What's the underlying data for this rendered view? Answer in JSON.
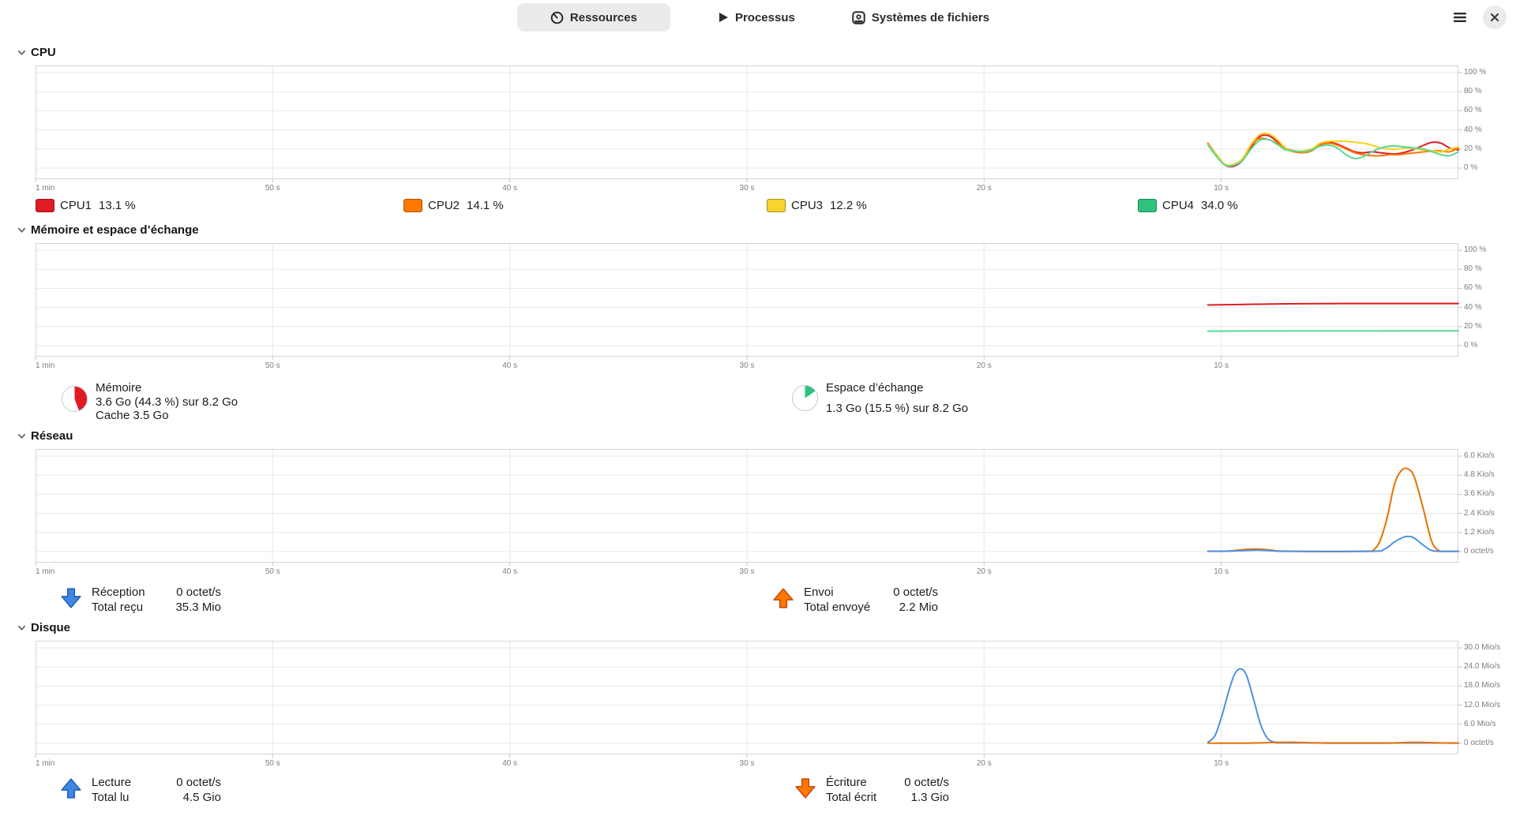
{
  "header": {
    "tabs": [
      {
        "label": "Ressources",
        "icon": "gauge-icon",
        "active": true
      },
      {
        "label": "Processus",
        "icon": "play-icon",
        "active": false
      },
      {
        "label": "Systèmes de fichiers",
        "icon": "disk-icon",
        "active": false
      }
    ]
  },
  "sections": {
    "cpu": {
      "title": "CPU",
      "legend": [
        {
          "name": "CPU1",
          "value": "13.1 %",
          "color": "#e01b24"
        },
        {
          "name": "CPU2",
          "value": "14.1 %",
          "color": "#ff7800"
        },
        {
          "name": "CPU3",
          "value": "12.2 %",
          "color": "#f6d32d"
        },
        {
          "name": "CPU4",
          "value": "34.0 %",
          "color": "#2ec27e"
        }
      ]
    },
    "memory": {
      "title": "Mémoire et espace d’échange",
      "memory": {
        "label": "Mémoire",
        "usage": "3.6 Go (44.3 %) sur 8.2 Go",
        "cache": "Cache 3.5 Go",
        "percent": 44.3,
        "color": "#e01b24"
      },
      "swap": {
        "label": "Espace d’échange",
        "usage": "1.3 Go (15.5 %) sur 8.2 Go",
        "percent": 15.5,
        "color": "#2ec27e"
      }
    },
    "network": {
      "title": "Réseau",
      "receive": {
        "label": "Réception",
        "rate": "0 octet/s",
        "total_label": "Total reçu",
        "total": "35.3 Mio"
      },
      "send": {
        "label": "Envoi",
        "rate": "0 octet/s",
        "total_label": "Total envoyé",
        "total": "2.2 Mio"
      }
    },
    "disk": {
      "title": "Disque",
      "read": {
        "label": "Lecture",
        "rate": "0 octet/s",
        "total_label": "Total lu",
        "total": "4.5 Gio"
      },
      "write": {
        "label": "Écriture",
        "rate": "0 octet/s",
        "total_label": "Total écrit",
        "total": "1.3 Gio"
      }
    }
  },
  "chart_data": [
    {
      "type": "line",
      "title": "CPU history (%)",
      "ylim": [
        0,
        100
      ],
      "yticks": [
        "100 %",
        "80 %",
        "60 %",
        "40 %",
        "20 %",
        "0 %"
      ],
      "xticks": [
        "1 min",
        "50 s",
        "40 s",
        "30 s",
        "20 s",
        "10 s"
      ],
      "grid": true,
      "series": [
        {
          "name": "CPU1",
          "color": "#e01b24",
          "x_start": 0.824,
          "values": [
            26,
            14,
            3,
            2,
            8,
            22,
            33,
            34,
            28,
            21,
            18,
            17,
            19,
            25,
            27,
            25,
            21,
            17,
            16,
            17,
            16,
            15,
            15,
            17,
            20,
            24,
            27,
            26,
            21,
            19
          ]
        },
        {
          "name": "CPU2",
          "color": "#ff7800",
          "x_start": 0.824,
          "values": [
            26,
            13,
            3,
            3,
            9,
            24,
            31,
            30,
            26,
            20,
            17,
            16,
            18,
            24,
            26,
            24,
            20,
            16,
            14,
            13,
            13,
            14,
            14,
            15,
            16,
            17,
            18,
            18,
            17,
            21
          ]
        },
        {
          "name": "CPU3",
          "color": "#f5d01f",
          "x_start": 0.824,
          "values": [
            25,
            14,
            4,
            4,
            10,
            25,
            35,
            36,
            30,
            21,
            18,
            18,
            20,
            26,
            28,
            28,
            28,
            27,
            26,
            24,
            21,
            20,
            20,
            21,
            20,
            19,
            18,
            17,
            20,
            22
          ]
        },
        {
          "name": "CPU4",
          "color": "#57d992",
          "x_start": 0.824,
          "values": [
            24,
            12,
            3,
            3,
            8,
            20,
            29,
            30,
            25,
            19,
            18,
            17,
            19,
            23,
            24,
            21,
            14,
            10,
            12,
            17,
            21,
            23,
            23,
            22,
            21,
            20,
            17,
            14,
            13,
            17
          ]
        }
      ]
    },
    {
      "type": "line",
      "title": "Memory and swap history (%)",
      "ylim": [
        0,
        100
      ],
      "yticks": [
        "100 %",
        "80 %",
        "60 %",
        "40 %",
        "20 %",
        "0 %"
      ],
      "xticks": [
        "1 min",
        "50 s",
        "40 s",
        "30 s",
        "20 s",
        "10 s"
      ],
      "grid": true,
      "series": [
        {
          "name": "Mémoire",
          "color": "#e01b24",
          "points": [
            [
              0.824,
              42.6
            ],
            [
              0.85,
              43.2
            ],
            [
              0.88,
              43.8
            ],
            [
              0.92,
              44.1
            ],
            [
              1,
              44.1
            ]
          ]
        },
        {
          "name": "Espace d’échange",
          "color": "#57d992",
          "points": [
            [
              0.824,
              15.2
            ],
            [
              0.9,
              15.4
            ],
            [
              1,
              15.5
            ]
          ]
        }
      ]
    },
    {
      "type": "line",
      "title": "Network history (Kio/s)",
      "ylim": [
        0,
        6
      ],
      "yticks": [
        "6.0 Kio/s",
        "4.8 Kio/s",
        "3.6 Kio/s",
        "2.4 Kio/s",
        "1.2 Kio/s",
        "0 octet/s"
      ],
      "xticks": [
        "1 min",
        "50 s",
        "40 s",
        "30 s",
        "20 s",
        "10 s"
      ],
      "grid": true,
      "series": [
        {
          "name": "Envoi",
          "color": "#e87000",
          "points": [
            [
              0.824,
              0.03
            ],
            [
              0.838,
              0.03
            ],
            [
              0.848,
              0.12
            ],
            [
              0.858,
              0.16
            ],
            [
              0.868,
              0.1
            ],
            [
              0.878,
              0.03
            ],
            [
              0.93,
              0.02
            ],
            [
              0.942,
              0.25
            ],
            [
              0.949,
              1.8
            ],
            [
              0.955,
              4.2
            ],
            [
              0.96,
              5.1
            ],
            [
              0.9645,
              5.2
            ],
            [
              0.969,
              4.7
            ],
            [
              0.975,
              2.8
            ],
            [
              0.981,
              0.7
            ],
            [
              0.986,
              0.08
            ],
            [
              0.992,
              0.02
            ],
            [
              1,
              0.02
            ]
          ]
        },
        {
          "name": "Réception",
          "color": "#4e92e0",
          "points": [
            [
              0.824,
              0.02
            ],
            [
              0.84,
              0.03
            ],
            [
              0.85,
              0.07
            ],
            [
              0.86,
              0.09
            ],
            [
              0.87,
              0.05
            ],
            [
              0.88,
              0.02
            ],
            [
              0.938,
              0.02
            ],
            [
              0.948,
              0.15
            ],
            [
              0.955,
              0.6
            ],
            [
              0.962,
              0.92
            ],
            [
              0.968,
              0.9
            ],
            [
              0.974,
              0.5
            ],
            [
              0.98,
              0.12
            ],
            [
              0.986,
              0.02
            ],
            [
              1,
              0.02
            ]
          ]
        }
      ]
    },
    {
      "type": "line",
      "title": "Disk history (Mio/s)",
      "ylim": [
        0,
        30
      ],
      "yticks": [
        "30.0 Mio/s",
        "24.0 Mio/s",
        "18.0 Mio/s",
        "12.0 Mio/s",
        "6.0 Mio/s",
        "0 octet/s"
      ],
      "xticks": [
        "1 min",
        "50 s",
        "40 s",
        "30 s",
        "20 s",
        "10 s"
      ],
      "grid": true,
      "series": [
        {
          "name": "Lecture",
          "color": "#4e92e0",
          "points": [
            [
              0.824,
              0.3
            ],
            [
              0.829,
              2.5
            ],
            [
              0.834,
              9
            ],
            [
              0.839,
              17
            ],
            [
              0.843,
              22
            ],
            [
              0.847,
              23.4
            ],
            [
              0.851,
              21.5
            ],
            [
              0.856,
              14
            ],
            [
              0.861,
              6
            ],
            [
              0.866,
              1.5
            ],
            [
              0.872,
              0.3
            ],
            [
              0.88,
              0.15
            ],
            [
              0.95,
              0.12
            ],
            [
              1,
              0.12
            ]
          ]
        },
        {
          "name": "Écriture",
          "color": "#e87000",
          "points": [
            [
              0.824,
              0.05
            ],
            [
              0.845,
              0.05
            ],
            [
              0.858,
              0.12
            ],
            [
              0.872,
              0.3
            ],
            [
              0.886,
              0.32
            ],
            [
              0.9,
              0.15
            ],
            [
              0.915,
              0.05
            ],
            [
              0.95,
              0.08
            ],
            [
              0.965,
              0.3
            ],
            [
              0.978,
              0.28
            ],
            [
              0.99,
              0.12
            ],
            [
              1,
              0.08
            ]
          ]
        }
      ]
    }
  ]
}
